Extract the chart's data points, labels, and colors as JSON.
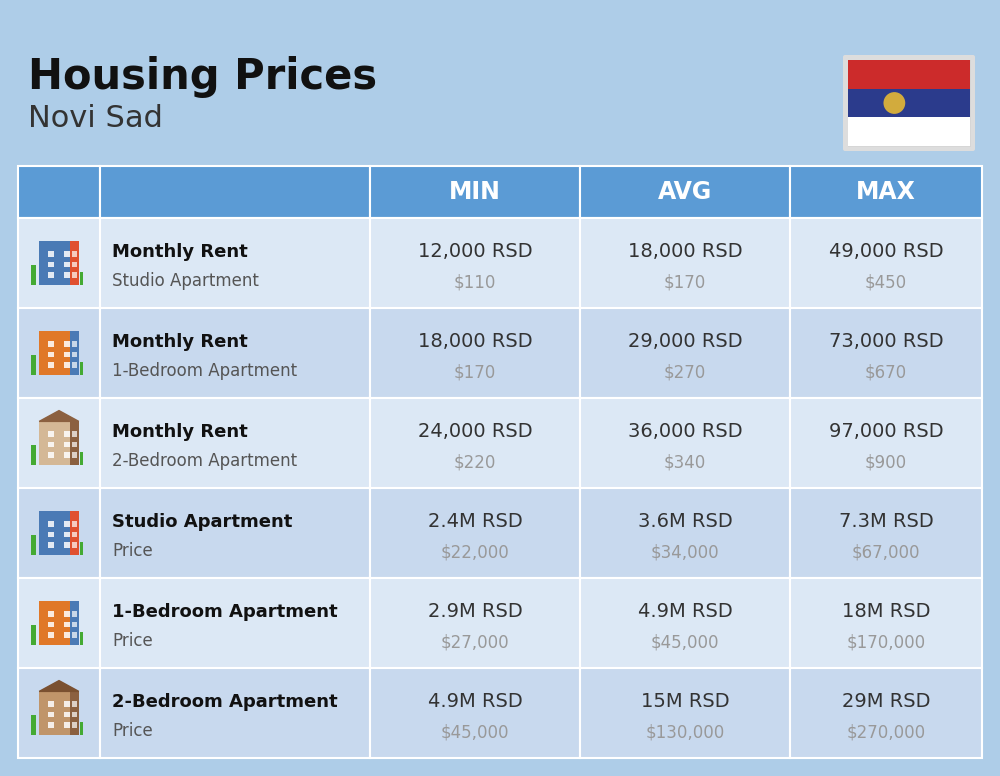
{
  "title": "Housing Prices",
  "subtitle": "Novi Sad",
  "background_color": "#aecde8",
  "header_bg_color": "#5b9bd5",
  "header_text_color": "#ffffff",
  "row_bg_colors": [
    "#dce8f5",
    "#c8d9ee"
  ],
  "col_headers": [
    "MIN",
    "AVG",
    "MAX"
  ],
  "rows": [
    {
      "icon_type": "blue_red",
      "label_bold": "Monthly Rent",
      "label_normal": "Studio Apartment",
      "min_rsd": "12,000 RSD",
      "min_usd": "$110",
      "avg_rsd": "18,000 RSD",
      "avg_usd": "$170",
      "max_rsd": "49,000 RSD",
      "max_usd": "$450"
    },
    {
      "icon_type": "orange_green",
      "label_bold": "Monthly Rent",
      "label_normal": "1-Bedroom Apartment",
      "min_rsd": "18,000 RSD",
      "min_usd": "$170",
      "avg_rsd": "29,000 RSD",
      "avg_usd": "$270",
      "max_rsd": "73,000 RSD",
      "max_usd": "$670"
    },
    {
      "icon_type": "tan_brown",
      "label_bold": "Monthly Rent",
      "label_normal": "2-Bedroom Apartment",
      "min_rsd": "24,000 RSD",
      "min_usd": "$220",
      "avg_rsd": "36,000 RSD",
      "avg_usd": "$340",
      "max_rsd": "97,000 RSD",
      "max_usd": "$900"
    },
    {
      "icon_type": "blue_red",
      "label_bold": "Studio Apartment",
      "label_normal": "Price",
      "min_rsd": "2.4M RSD",
      "min_usd": "$22,000",
      "avg_rsd": "3.6M RSD",
      "avg_usd": "$34,000",
      "max_rsd": "7.3M RSD",
      "max_usd": "$67,000"
    },
    {
      "icon_type": "orange_green",
      "label_bold": "1-Bedroom Apartment",
      "label_normal": "Price",
      "min_rsd": "2.9M RSD",
      "min_usd": "$27,000",
      "avg_rsd": "4.9M RSD",
      "avg_usd": "$45,000",
      "max_rsd": "18M RSD",
      "max_usd": "$170,000"
    },
    {
      "icon_type": "brown_green",
      "label_bold": "2-Bedroom Apartment",
      "label_normal": "Price",
      "min_rsd": "4.9M RSD",
      "min_usd": "$45,000",
      "avg_rsd": "15M RSD",
      "avg_usd": "$130,000",
      "max_rsd": "29M RSD",
      "max_usd": "$270,000"
    }
  ],
  "cell_text_color": "#333333",
  "usd_text_color": "#999999",
  "label_bold_color": "#111111",
  "label_normal_color": "#555555",
  "flag_colors": [
    "#CC2B2B",
    "#2B3B8C",
    "#FFFFFF"
  ]
}
